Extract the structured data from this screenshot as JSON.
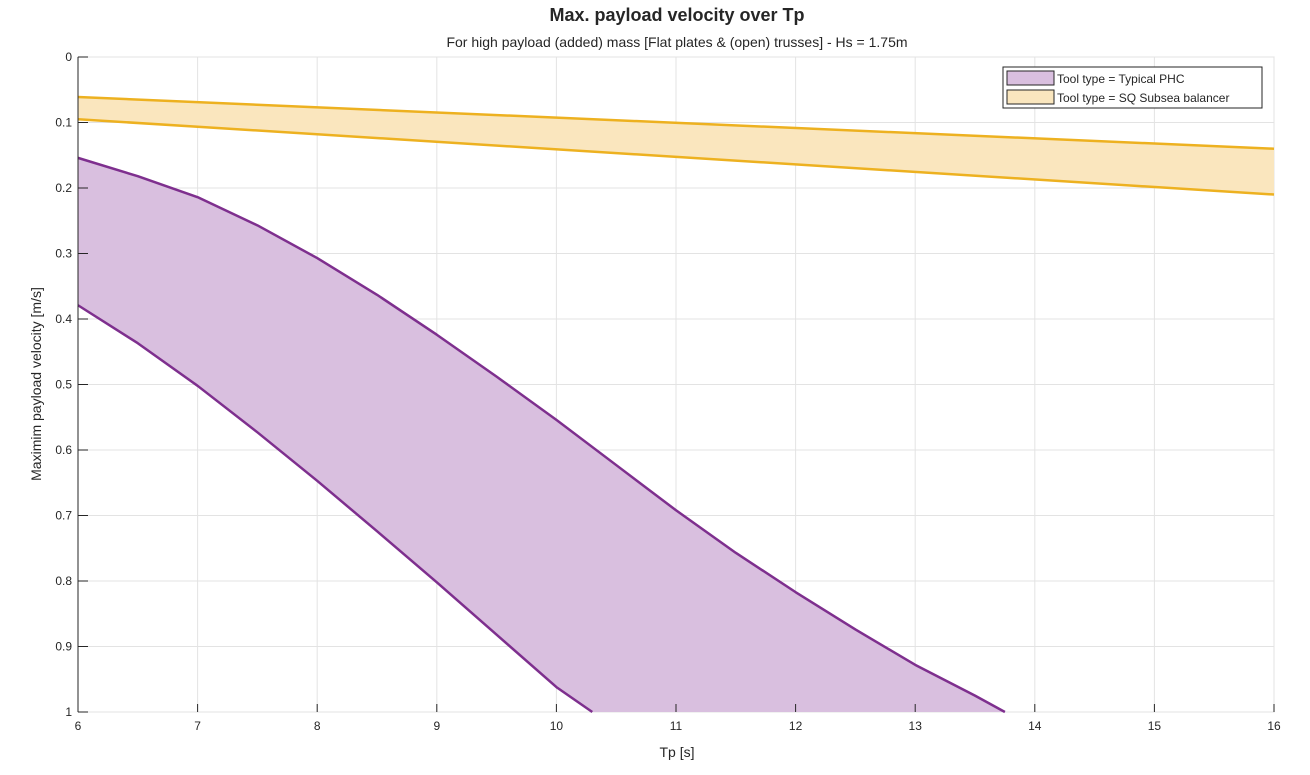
{
  "chart_data": {
    "type": "area",
    "title": "Max. payload velocity over Tp",
    "subtitle": "For high payload (added) mass [Flat plates & (open) trusses]  -  Hs = 1.75m",
    "xlabel": "Tp [s]",
    "ylabel": "Maximim payload velocity [m/s]",
    "xlim": [
      6,
      16
    ],
    "ylim": [
      0,
      1
    ],
    "y_reversed": true,
    "grid": true,
    "legend_position": "top-right",
    "xticks": [
      "6",
      "7",
      "8",
      "9",
      "10",
      "11",
      "12",
      "13",
      "14",
      "15",
      "16"
    ],
    "yticks": [
      "0",
      "0.1",
      "0.2",
      "0.3",
      "0.4",
      "0.5",
      "0.6",
      "0.7",
      "0.8",
      "0.9",
      "1"
    ],
    "series": [
      {
        "name": "Tool type = Typical PHC",
        "line_color": "#7E2F8E",
        "fill_color": "#D9BFDF",
        "upper": {
          "x": [
            6,
            6.5,
            7,
            7.5,
            8,
            8.5,
            9,
            9.5,
            10,
            10.5,
            11,
            11.5,
            12,
            12.5,
            13,
            13.5,
            13.75
          ],
          "y": [
            0.154,
            0.182,
            0.214,
            0.257,
            0.307,
            0.363,
            0.424,
            0.488,
            0.554,
            0.623,
            0.692,
            0.757,
            0.817,
            0.874,
            0.928,
            0.975,
            1.0
          ]
        },
        "lower": {
          "x": [
            6,
            6.5,
            7,
            7.5,
            8,
            8.5,
            9,
            9.5,
            10,
            10.3
          ],
          "y": [
            0.379,
            0.437,
            0.502,
            0.573,
            0.647,
            0.724,
            0.802,
            0.882,
            0.962,
            1.0
          ]
        }
      },
      {
        "name": "Tool type = SQ Subsea balancer",
        "line_color": "#EDB120",
        "fill_color": "#FAE6BE",
        "upper": {
          "x": [
            6,
            16
          ],
          "y": [
            0.061,
            0.14
          ]
        },
        "lower": {
          "x": [
            6,
            16
          ],
          "y": [
            0.095,
            0.21
          ]
        }
      }
    ]
  }
}
